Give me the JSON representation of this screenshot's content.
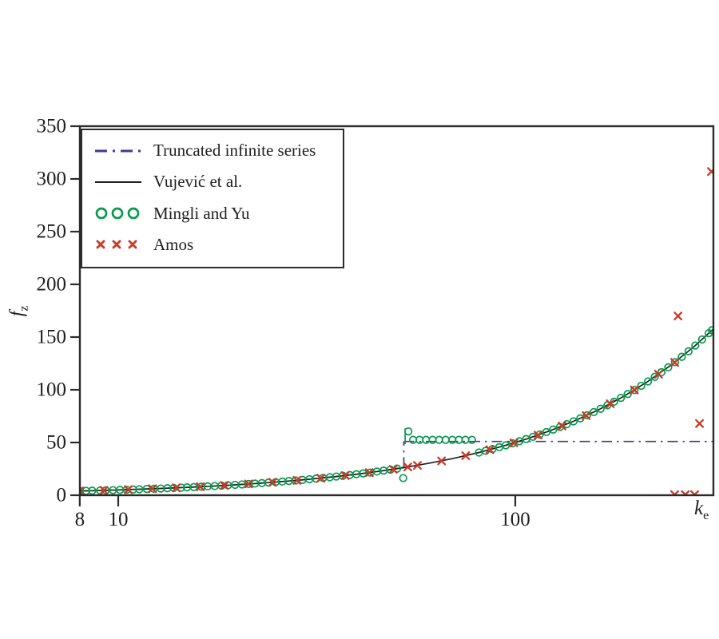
{
  "colors": {
    "background": "#ffffff",
    "frame": "#2b2b2b",
    "ink": "#1f1f1f",
    "truncated_navy": "#3a3a96",
    "vujevic_black": "#1f1f1f",
    "mingli_green": "#089a4e",
    "amos_red": "#cb3928"
  },
  "axes": {
    "x": {
      "label_base": "k",
      "label_sub": "e",
      "scale": "log",
      "min": 8,
      "max": 315,
      "ticks": [
        8,
        10,
        100
      ],
      "tick_labels": [
        "8",
        "10",
        "100"
      ]
    },
    "y": {
      "label_base": "f",
      "label_sub": "z",
      "scale": "linear",
      "min": 0,
      "max": 350,
      "ticks": [
        0,
        50,
        100,
        150,
        200,
        250,
        300,
        350
      ],
      "tick_labels": [
        "0",
        "50",
        "100",
        "150",
        "200",
        "250",
        "300",
        "350"
      ]
    }
  },
  "legend": {
    "position": "top-left",
    "items": [
      {
        "label": "Truncated infinite series",
        "marker": "dashdot-line",
        "color_key": "truncated_navy"
      },
      {
        "label": "Vujević et al.",
        "marker": "solid-line",
        "color_key": "vujevic_black"
      },
      {
        "label": "Mingli and Yu",
        "marker": "open-circles",
        "color_key": "mingli_green"
      },
      {
        "label": "Amos",
        "marker": "x-crosses",
        "color_key": "amos_red"
      }
    ]
  },
  "chart_data": {
    "type": "line",
    "title": "",
    "xlabel": "k_e",
    "ylabel": "f_z",
    "x_scale": "log",
    "xlim": [
      8,
      315
    ],
    "ylim": [
      0,
      350
    ],
    "grid": false,
    "curve": {
      "relation": "f ≈ k/2",
      "slope": 0.5
    },
    "series": [
      {
        "name": "Truncated infinite series",
        "style": "dashdot",
        "color_key": "truncated_navy",
        "on_curve_points": [
          [
            8,
            4
          ],
          [
            10,
            5
          ],
          [
            13,
            6.5
          ],
          [
            17,
            8.5
          ],
          [
            22,
            11
          ],
          [
            28,
            14
          ],
          [
            36,
            18
          ],
          [
            45,
            22.5
          ],
          [
            52.4,
            26.2
          ]
        ],
        "jump": {
          "k": 52.4,
          "f_from": 26.2,
          "f_to": 51
        },
        "flat": {
          "f": 51,
          "k_from": 52.4,
          "k_to": 315
        }
      },
      {
        "name": "Vujević et al.",
        "style": "solid",
        "color_key": "vujevic_black",
        "points": [
          [
            8,
            4
          ],
          [
            9,
            4.5
          ],
          [
            10,
            5
          ],
          [
            11.5,
            5.75
          ],
          [
            13,
            6.5
          ],
          [
            15,
            7.5
          ],
          [
            17,
            8.5
          ],
          [
            20,
            10
          ],
          [
            23,
            11.5
          ],
          [
            26,
            13
          ],
          [
            30,
            15
          ],
          [
            35,
            17.5
          ],
          [
            40,
            20
          ],
          [
            46,
            23
          ],
          [
            53,
            26.5
          ],
          [
            61,
            30.5
          ],
          [
            70,
            35
          ],
          [
            81,
            40.5
          ],
          [
            93,
            46.5
          ],
          [
            107,
            53.5
          ],
          [
            123,
            61.5
          ],
          [
            141,
            70.5
          ],
          [
            162,
            81
          ],
          [
            187,
            93.5
          ],
          [
            215,
            107.5
          ],
          [
            247,
            123.5
          ],
          [
            284,
            142
          ],
          [
            315,
            157.5
          ]
        ]
      },
      {
        "name": "Mingli and Yu",
        "style": "open-circle-markers",
        "color_key": "mingli_green",
        "on_curve_k_train1": [
          8.0,
          8.3,
          8.6,
          9.0,
          9.3,
          9.7,
          10.1,
          10.5,
          10.9,
          11.3,
          11.8,
          12.3,
          12.8,
          13.3,
          13.8,
          14.4,
          14.9,
          15.5,
          16.2,
          16.8,
          17.5,
          18.2,
          18.9,
          19.7,
          20.5,
          21.3,
          22.1,
          23.0,
          23.9,
          24.9,
          25.9,
          26.9,
          28.0,
          29.1,
          30.3,
          31.5,
          32.8,
          34.1,
          35.4,
          36.8,
          38.3,
          39.8,
          41.4,
          43.1,
          44.8,
          46.6,
          48.5,
          50.4
        ],
        "plateau": {
          "f": 52.5,
          "k": [
            55.3,
            57.4,
            59.6,
            61.9,
            64.3,
            66.8,
            69.4,
            72.1,
            74.9,
            77.8
          ]
        },
        "on_curve_k_train2": [
          81.0,
          84.2,
          87.6,
          91.1,
          94.7,
          98.5,
          102.4,
          106.5,
          110.8,
          115.2,
          119.8,
          124.6,
          129.6,
          134.8,
          140.2,
          145.8,
          151.6,
          157.7,
          164.0,
          170.6,
          177.4,
          184.5,
          191.9,
          199.6,
          207.6,
          215.9,
          224.5,
          233.5,
          242.8,
          252.5,
          262.6,
          273.1,
          284.0,
          295.4,
          307.2,
          313.0
        ],
        "outlier_points": [
          [
            52.2,
            16.3
          ],
          [
            53.8,
            60.5
          ]
        ],
        "pole": {
          "k": 52.8,
          "f_from": 48.5,
          "f_to": 63.5
        }
      },
      {
        "name": "Amos",
        "style": "x-markers",
        "color_key": "amos_red",
        "on_curve_k": [
          8,
          9.2,
          10.6,
          12.2,
          14.0,
          16.1,
          18.5,
          21.3,
          24.5,
          28.2,
          32.4,
          37.3,
          42.9,
          49.3,
          53.6,
          56.7,
          65.2,
          75.0,
          86.3,
          99.2,
          114.1,
          131.2,
          150.9,
          173.5,
          199.6,
          229.5,
          252.0
        ],
        "outlier_points": [
          [
            257,
            170
          ],
          [
            291,
            68
          ],
          [
            312,
            307
          ],
          [
            252,
            0.5
          ],
          [
            268,
            0.5
          ],
          [
            283,
            0.5
          ]
        ]
      }
    ]
  }
}
